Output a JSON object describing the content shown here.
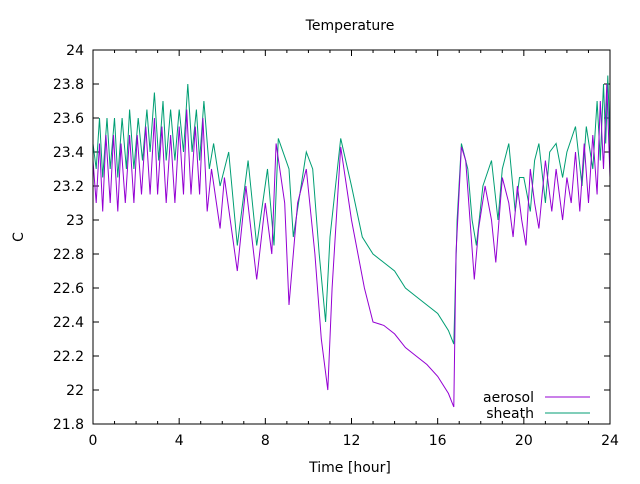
{
  "chart_data": {
    "type": "line",
    "title": "Temperature",
    "xlabel": "Time [hour]",
    "ylabel": "C",
    "xlim": [
      0,
      24
    ],
    "ylim": [
      21.8,
      24
    ],
    "xticks": [
      0,
      4,
      8,
      12,
      16,
      20,
      24
    ],
    "xtick_labels": [
      "0",
      "4",
      "8",
      "12",
      "16",
      "20",
      "24"
    ],
    "yticks": [
      21.8,
      22,
      22.2,
      22.4,
      22.6,
      22.8,
      23,
      23.2,
      23.4,
      23.6,
      23.8,
      24
    ],
    "ytick_labels": [
      "21.8",
      "22",
      "22.2",
      "22.4",
      "22.6",
      "22.8",
      "23",
      "23.2",
      "23.4",
      "23.6",
      "23.8",
      "24"
    ],
    "grid": false,
    "legend_position": "bottom-right",
    "series": [
      {
        "name": "aerosol",
        "color": "#9400d3",
        "points": [
          [
            0,
            23.35
          ],
          [
            0.15,
            23.1
          ],
          [
            0.3,
            23.45
          ],
          [
            0.45,
            23.05
          ],
          [
            0.6,
            23.5
          ],
          [
            0.8,
            23.1
          ],
          [
            0.95,
            23.5
          ],
          [
            1.15,
            23.05
          ],
          [
            1.3,
            23.45
          ],
          [
            1.5,
            23.1
          ],
          [
            1.7,
            23.5
          ],
          [
            1.9,
            23.1
          ],
          [
            2.05,
            23.5
          ],
          [
            2.25,
            23.15
          ],
          [
            2.45,
            23.55
          ],
          [
            2.65,
            23.15
          ],
          [
            2.85,
            23.6
          ],
          [
            3.0,
            23.15
          ],
          [
            3.2,
            23.55
          ],
          [
            3.4,
            23.1
          ],
          [
            3.6,
            23.5
          ],
          [
            3.8,
            23.1
          ],
          [
            4.0,
            23.55
          ],
          [
            4.2,
            23.15
          ],
          [
            4.35,
            23.65
          ],
          [
            4.55,
            23.15
          ],
          [
            4.75,
            23.55
          ],
          [
            4.95,
            23.15
          ],
          [
            5.1,
            23.6
          ],
          [
            5.3,
            23.05
          ],
          [
            5.5,
            23.3
          ],
          [
            5.9,
            22.95
          ],
          [
            6.1,
            23.25
          ],
          [
            6.7,
            22.7
          ],
          [
            7.1,
            23.2
          ],
          [
            7.6,
            22.65
          ],
          [
            8.0,
            23.1
          ],
          [
            8.3,
            22.8
          ],
          [
            8.5,
            23.45
          ],
          [
            8.9,
            23.1
          ],
          [
            9.1,
            22.5
          ],
          [
            9.5,
            23.1
          ],
          [
            9.9,
            23.3
          ],
          [
            10.3,
            22.8
          ],
          [
            10.6,
            22.3
          ],
          [
            10.9,
            22.0
          ],
          [
            11.1,
            22.6
          ],
          [
            11.5,
            23.43
          ],
          [
            12,
            23.0
          ],
          [
            12.6,
            22.6
          ],
          [
            13,
            22.4
          ],
          [
            13.5,
            22.38
          ],
          [
            14,
            22.33
          ],
          [
            14.5,
            22.25
          ],
          [
            15,
            22.2
          ],
          [
            15.5,
            22.15
          ],
          [
            16,
            22.08
          ],
          [
            16.5,
            21.98
          ],
          [
            16.75,
            21.9
          ],
          [
            16.85,
            22.8
          ],
          [
            17.1,
            23.43
          ],
          [
            17.3,
            23.35
          ],
          [
            17.5,
            23.0
          ],
          [
            17.7,
            22.65
          ],
          [
            17.9,
            22.95
          ],
          [
            18.2,
            23.2
          ],
          [
            18.5,
            23.0
          ],
          [
            18.7,
            22.75
          ],
          [
            19.0,
            23.25
          ],
          [
            19.3,
            23.1
          ],
          [
            19.5,
            22.9
          ],
          [
            19.7,
            23.2
          ],
          [
            19.9,
            23.0
          ],
          [
            20.1,
            22.85
          ],
          [
            20.3,
            23.3
          ],
          [
            20.5,
            23.1
          ],
          [
            20.7,
            22.95
          ],
          [
            21.0,
            23.35
          ],
          [
            21.3,
            23.05
          ],
          [
            21.5,
            23.3
          ],
          [
            21.8,
            23.0
          ],
          [
            22.0,
            23.25
          ],
          [
            22.2,
            23.1
          ],
          [
            22.4,
            23.4
          ],
          [
            22.6,
            23.05
          ],
          [
            22.8,
            23.45
          ],
          [
            23.0,
            23.1
          ],
          [
            23.2,
            23.5
          ],
          [
            23.4,
            23.15
          ],
          [
            23.55,
            23.7
          ],
          [
            23.7,
            23.3
          ],
          [
            23.85,
            23.8
          ],
          [
            24,
            23.25
          ]
        ]
      },
      {
        "name": "sheath",
        "color": "#009e73",
        "points": [
          [
            0,
            23.45
          ],
          [
            0.15,
            23.3
          ],
          [
            0.3,
            23.6
          ],
          [
            0.45,
            23.25
          ],
          [
            0.65,
            23.6
          ],
          [
            0.8,
            23.3
          ],
          [
            1.0,
            23.6
          ],
          [
            1.15,
            23.25
          ],
          [
            1.35,
            23.6
          ],
          [
            1.55,
            23.3
          ],
          [
            1.7,
            23.65
          ],
          [
            1.9,
            23.3
          ],
          [
            2.1,
            23.6
          ],
          [
            2.3,
            23.35
          ],
          [
            2.5,
            23.65
          ],
          [
            2.65,
            23.4
          ],
          [
            2.85,
            23.75
          ],
          [
            3.05,
            23.35
          ],
          [
            3.25,
            23.7
          ],
          [
            3.4,
            23.35
          ],
          [
            3.6,
            23.65
          ],
          [
            3.8,
            23.35
          ],
          [
            4.0,
            23.65
          ],
          [
            4.2,
            23.4
          ],
          [
            4.4,
            23.8
          ],
          [
            4.6,
            23.4
          ],
          [
            4.8,
            23.65
          ],
          [
            4.95,
            23.35
          ],
          [
            5.15,
            23.7
          ],
          [
            5.4,
            23.3
          ],
          [
            5.6,
            23.45
          ],
          [
            5.9,
            23.2
          ],
          [
            6.3,
            23.4
          ],
          [
            6.7,
            22.85
          ],
          [
            7.2,
            23.35
          ],
          [
            7.6,
            22.85
          ],
          [
            8.1,
            23.3
          ],
          [
            8.4,
            22.85
          ],
          [
            8.6,
            23.48
          ],
          [
            9.1,
            23.3
          ],
          [
            9.3,
            22.9
          ],
          [
            9.9,
            23.4
          ],
          [
            10.2,
            23.3
          ],
          [
            10.5,
            22.8
          ],
          [
            10.8,
            22.4
          ],
          [
            11.0,
            22.9
          ],
          [
            11.5,
            23.48
          ],
          [
            12,
            23.2
          ],
          [
            12.5,
            22.9
          ],
          [
            13,
            22.8
          ],
          [
            13.5,
            22.75
          ],
          [
            14,
            22.7
          ],
          [
            14.5,
            22.6
          ],
          [
            15,
            22.55
          ],
          [
            15.5,
            22.5
          ],
          [
            16,
            22.45
          ],
          [
            16.5,
            22.35
          ],
          [
            16.75,
            22.27
          ],
          [
            16.9,
            23.0
          ],
          [
            17.1,
            23.45
          ],
          [
            17.4,
            23.3
          ],
          [
            17.6,
            23.0
          ],
          [
            17.8,
            22.85
          ],
          [
            18.1,
            23.2
          ],
          [
            18.5,
            23.35
          ],
          [
            18.8,
            23.0
          ],
          [
            19.0,
            23.3
          ],
          [
            19.3,
            23.45
          ],
          [
            19.6,
            23.05
          ],
          [
            19.8,
            23.25
          ],
          [
            20.0,
            23.25
          ],
          [
            20.3,
            23.05
          ],
          [
            20.5,
            23.35
          ],
          [
            20.7,
            23.45
          ],
          [
            21.0,
            23.1
          ],
          [
            21.2,
            23.4
          ],
          [
            21.5,
            23.45
          ],
          [
            21.8,
            23.25
          ],
          [
            22.0,
            23.4
          ],
          [
            22.4,
            23.55
          ],
          [
            22.7,
            23.2
          ],
          [
            22.9,
            23.55
          ],
          [
            23.2,
            23.3
          ],
          [
            23.4,
            23.7
          ],
          [
            23.55,
            23.35
          ],
          [
            23.7,
            23.8
          ],
          [
            23.8,
            23.45
          ],
          [
            23.9,
            23.85
          ],
          [
            24,
            23.45
          ]
        ]
      }
    ]
  }
}
